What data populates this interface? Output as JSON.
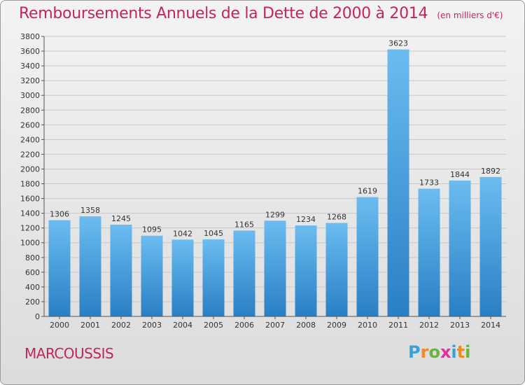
{
  "chart_title": "Remboursements Annuels de la Dette de 2000 à 2014",
  "chart_unit": "(en milliers d'€)",
  "city": "MARCOUSSIS",
  "brand": {
    "letters": [
      "P",
      "r",
      "o",
      "x",
      "i",
      "t",
      "i"
    ],
    "colors": [
      "#3aa0d8",
      "#f08a24",
      "#6cb33f",
      "#e0309a",
      "#3aa0d8",
      "#f08a24",
      "#6cb33f"
    ]
  },
  "colors": {
    "title": "#c2255c",
    "bar_light": "#6bbcf0",
    "bar_dark": "#2a7fc4",
    "grid": "#c8c8c8"
  },
  "chart_data": {
    "type": "bar",
    "categories": [
      "2000",
      "2001",
      "2002",
      "2003",
      "2004",
      "2005",
      "2006",
      "2007",
      "2008",
      "2009",
      "2010",
      "2011",
      "2012",
      "2013",
      "2014"
    ],
    "values": [
      1306,
      1358,
      1245,
      1095,
      1042,
      1045,
      1165,
      1299,
      1234,
      1268,
      1619,
      3623,
      1733,
      1844,
      1892
    ],
    "ylim": [
      0,
      3800
    ],
    "yticks": [
      0,
      200,
      400,
      600,
      800,
      1000,
      1200,
      1400,
      1600,
      1800,
      2000,
      2200,
      2400,
      2600,
      2800,
      3000,
      3200,
      3400,
      3600,
      3800
    ],
    "grid": true,
    "data_labels": true
  }
}
